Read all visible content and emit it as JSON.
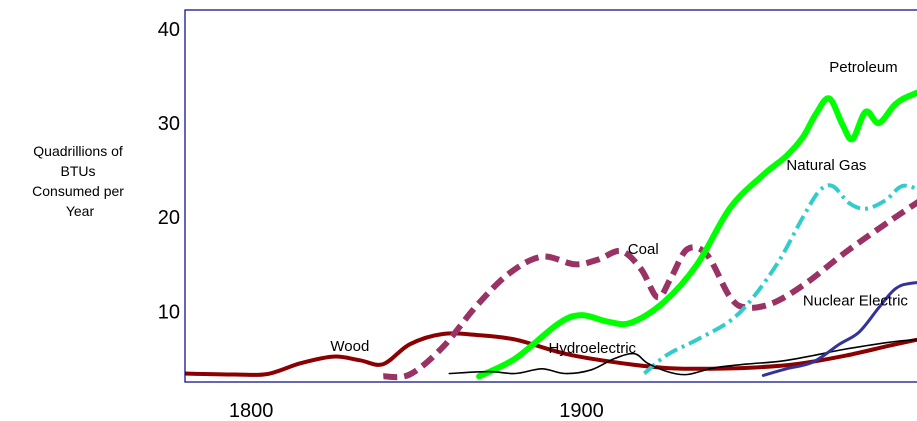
{
  "chart_data": {
    "type": "line",
    "title": "",
    "xlabel": "",
    "ylabel": "Quadrillions of BTUs Consumed per Year",
    "ylabel_lines": [
      "Quadrillions of",
      "BTUs",
      "Consumed per",
      "Year"
    ],
    "xlim": [
      1780,
      2010
    ],
    "ylim": [
      2.5,
      42
    ],
    "x_ticks": [
      1800,
      1900
    ],
    "y_ticks": [
      10,
      20,
      30,
      40
    ],
    "grid": false,
    "legend": "none",
    "series": [
      {
        "name": "Wood",
        "color": "#8b0000",
        "dash": "",
        "width": 4,
        "label_at": [
          1824,
          5.8
        ],
        "points": [
          [
            1780,
            3.4
          ],
          [
            1795,
            3.3
          ],
          [
            1805,
            3.35
          ],
          [
            1815,
            4.5
          ],
          [
            1825,
            5.2
          ],
          [
            1833,
            4.8
          ],
          [
            1840,
            4.4
          ],
          [
            1848,
            6.5
          ],
          [
            1858,
            7.6
          ],
          [
            1868,
            7.5
          ],
          [
            1880,
            7.0
          ],
          [
            1895,
            5.5
          ],
          [
            1910,
            4.6
          ],
          [
            1925,
            4.0
          ],
          [
            1935,
            3.9
          ],
          [
            1950,
            4.0
          ],
          [
            1965,
            4.4
          ],
          [
            1980,
            5.3
          ],
          [
            1995,
            6.5
          ],
          [
            2010,
            7.6
          ]
        ]
      },
      {
        "name": "Coal",
        "color": "#993366",
        "dash": "14 7",
        "width": 6,
        "label_at": [
          1914,
          16.1
        ],
        "points": [
          [
            1840,
            3.1
          ],
          [
            1848,
            3.3
          ],
          [
            1858,
            6.2
          ],
          [
            1868,
            10.5
          ],
          [
            1878,
            14.0
          ],
          [
            1888,
            15.8
          ],
          [
            1898,
            15.0
          ],
          [
            1905,
            15.5
          ],
          [
            1912,
            16.4
          ],
          [
            1918,
            14.5
          ],
          [
            1923,
            11.5
          ],
          [
            1927,
            13.5
          ],
          [
            1932,
            16.6
          ],
          [
            1938,
            16.0
          ],
          [
            1945,
            11.5
          ],
          [
            1950,
            10.4
          ],
          [
            1958,
            10.9
          ],
          [
            1968,
            13.0
          ],
          [
            1980,
            16.3
          ],
          [
            1995,
            20.0
          ],
          [
            2010,
            23.5
          ]
        ]
      },
      {
        "name": "Petroleum",
        "color": "#00ff00",
        "dash": "",
        "width": 6,
        "label_at": [
          1975,
          35.4
        ],
        "points": [
          [
            1869,
            3.1
          ],
          [
            1880,
            5.0
          ],
          [
            1893,
            8.7
          ],
          [
            1900,
            9.6
          ],
          [
            1908,
            8.9
          ],
          [
            1915,
            8.8
          ],
          [
            1925,
            11.0
          ],
          [
            1935,
            15.0
          ],
          [
            1945,
            21.0
          ],
          [
            1955,
            24.5
          ],
          [
            1962,
            26.5
          ],
          [
            1967,
            28.5
          ],
          [
            1971,
            31.0
          ],
          [
            1975,
            32.6
          ],
          [
            1979,
            29.8
          ],
          [
            1982,
            28.3
          ],
          [
            1986,
            31.2
          ],
          [
            1990,
            30.0
          ],
          [
            1995,
            32.0
          ],
          [
            2000,
            33.0
          ],
          [
            2010,
            34.2
          ]
        ]
      },
      {
        "name": "Natural Gas",
        "color": "#33cccc",
        "dash": "14 5 3 5",
        "width": 4,
        "label_at": [
          1962,
          25.0
        ],
        "points": [
          [
            1919,
            3.4
          ],
          [
            1926,
            5.4
          ],
          [
            1935,
            7.0
          ],
          [
            1945,
            9.0
          ],
          [
            1952,
            11.5
          ],
          [
            1960,
            15.5
          ],
          [
            1967,
            20.0
          ],
          [
            1972,
            22.8
          ],
          [
            1976,
            23.3
          ],
          [
            1981,
            21.5
          ],
          [
            1986,
            20.9
          ],
          [
            1992,
            21.8
          ],
          [
            1997,
            23.3
          ],
          [
            2003,
            23.0
          ],
          [
            2010,
            23.5
          ]
        ]
      },
      {
        "name": "Hydroelectric",
        "color": "#000000",
        "dash": "",
        "width": 1.6,
        "label_at": [
          1890,
          5.6
        ],
        "points": [
          [
            1860,
            3.4
          ],
          [
            1872,
            3.6
          ],
          [
            1880,
            3.4
          ],
          [
            1888,
            3.9
          ],
          [
            1895,
            3.4
          ],
          [
            1903,
            3.8
          ],
          [
            1910,
            5.0
          ],
          [
            1916,
            5.5
          ],
          [
            1920,
            4.5
          ],
          [
            1926,
            3.6
          ],
          [
            1932,
            3.3
          ],
          [
            1940,
            4.0
          ],
          [
            1950,
            4.4
          ],
          [
            1960,
            4.7
          ],
          [
            1970,
            5.3
          ],
          [
            1980,
            6.0
          ],
          [
            1995,
            6.8
          ],
          [
            2010,
            7.2
          ]
        ]
      },
      {
        "name": "Nuclear Electric",
        "color": "#333399",
        "dash": "",
        "width": 3,
        "label_at": [
          1967,
          10.6
        ],
        "points": [
          [
            1955,
            3.2
          ],
          [
            1962,
            3.9
          ],
          [
            1970,
            4.6
          ],
          [
            1978,
            6.5
          ],
          [
            1984,
            7.8
          ],
          [
            1990,
            10.4
          ],
          [
            1995,
            12.4
          ],
          [
            2000,
            13.0
          ],
          [
            2010,
            13.2
          ]
        ]
      }
    ]
  }
}
